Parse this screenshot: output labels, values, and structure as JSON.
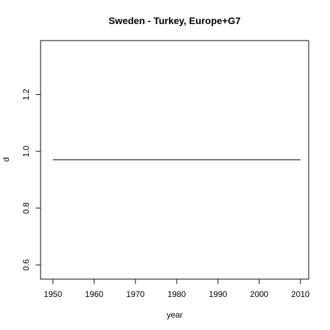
{
  "chart_data": {
    "type": "line",
    "title": "Sweden - Turkey, Europe+G7",
    "xlabel": "year",
    "ylabel": "d",
    "xlim": [
      1947,
      2012
    ],
    "ylim": [
      0.55,
      1.39
    ],
    "x_ticks": [
      1950,
      1960,
      1970,
      1980,
      1990,
      2000,
      2010
    ],
    "y_ticks": [
      0.6,
      0.8,
      1.0,
      1.2
    ],
    "x_tick_labels": [
      "1950",
      "1960",
      "1970",
      "1980",
      "1990",
      "2000",
      "2010"
    ],
    "y_tick_labels": [
      "0.6",
      "0.8",
      "1.0",
      "1.2"
    ],
    "grid": false,
    "series": [
      {
        "x": [
          1950,
          1960,
          1970,
          1980,
          1990,
          2000,
          2010
        ],
        "y": [
          0.97,
          0.97,
          0.97,
          0.97,
          0.97,
          0.97,
          0.97
        ],
        "color": "#000000"
      }
    ]
  }
}
